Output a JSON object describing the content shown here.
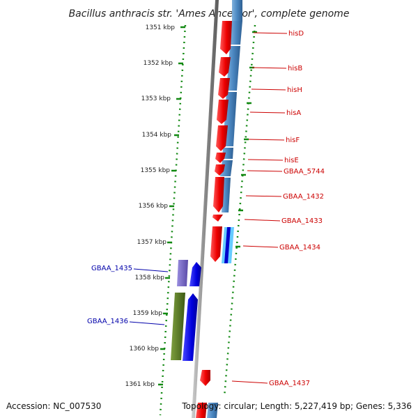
{
  "title": "Bacillus anthracis str. 'Ames Ancestor', complete genome",
  "footer": {
    "accession": "Accession: NC_007530",
    "topology": "Topology: circular; Length: 5,227,419 bp; Genes: 5,336"
  },
  "scale_labels": [
    "1351 kbp",
    "1352 kbp",
    "1353 kbp",
    "1354 kbp",
    "1355 kbp",
    "1356 kbp",
    "1357 kbp",
    "1358 kbp",
    "1359 kbp",
    "1360 kbp",
    "1361 kbp"
  ],
  "genes_forward": [
    {
      "name": "hisD"
    },
    {
      "name": "hisB"
    },
    {
      "name": "hisH"
    },
    {
      "name": "hisA"
    },
    {
      "name": "hisF"
    },
    {
      "name": "hisE"
    },
    {
      "name": "GBAA_5744"
    },
    {
      "name": "GBAA_1432"
    },
    {
      "name": "GBAA_1433"
    },
    {
      "name": "GBAA_1434"
    },
    {
      "name": "GBAA_1437"
    }
  ],
  "genes_reverse": [
    {
      "name": "GBAA_1435"
    },
    {
      "name": "GBAA_1436"
    }
  ],
  "colors": {
    "forward_label": "#cc0000",
    "reverse_label": "#0000aa",
    "gene_red": "#ee0000",
    "gene_blue": "#0000dd",
    "gene_lavender": "#7766cc",
    "gene_olive": "#557722",
    "cds_bar": "#4a86c0",
    "scale_dots": "#118811",
    "backbone": "#888888"
  }
}
